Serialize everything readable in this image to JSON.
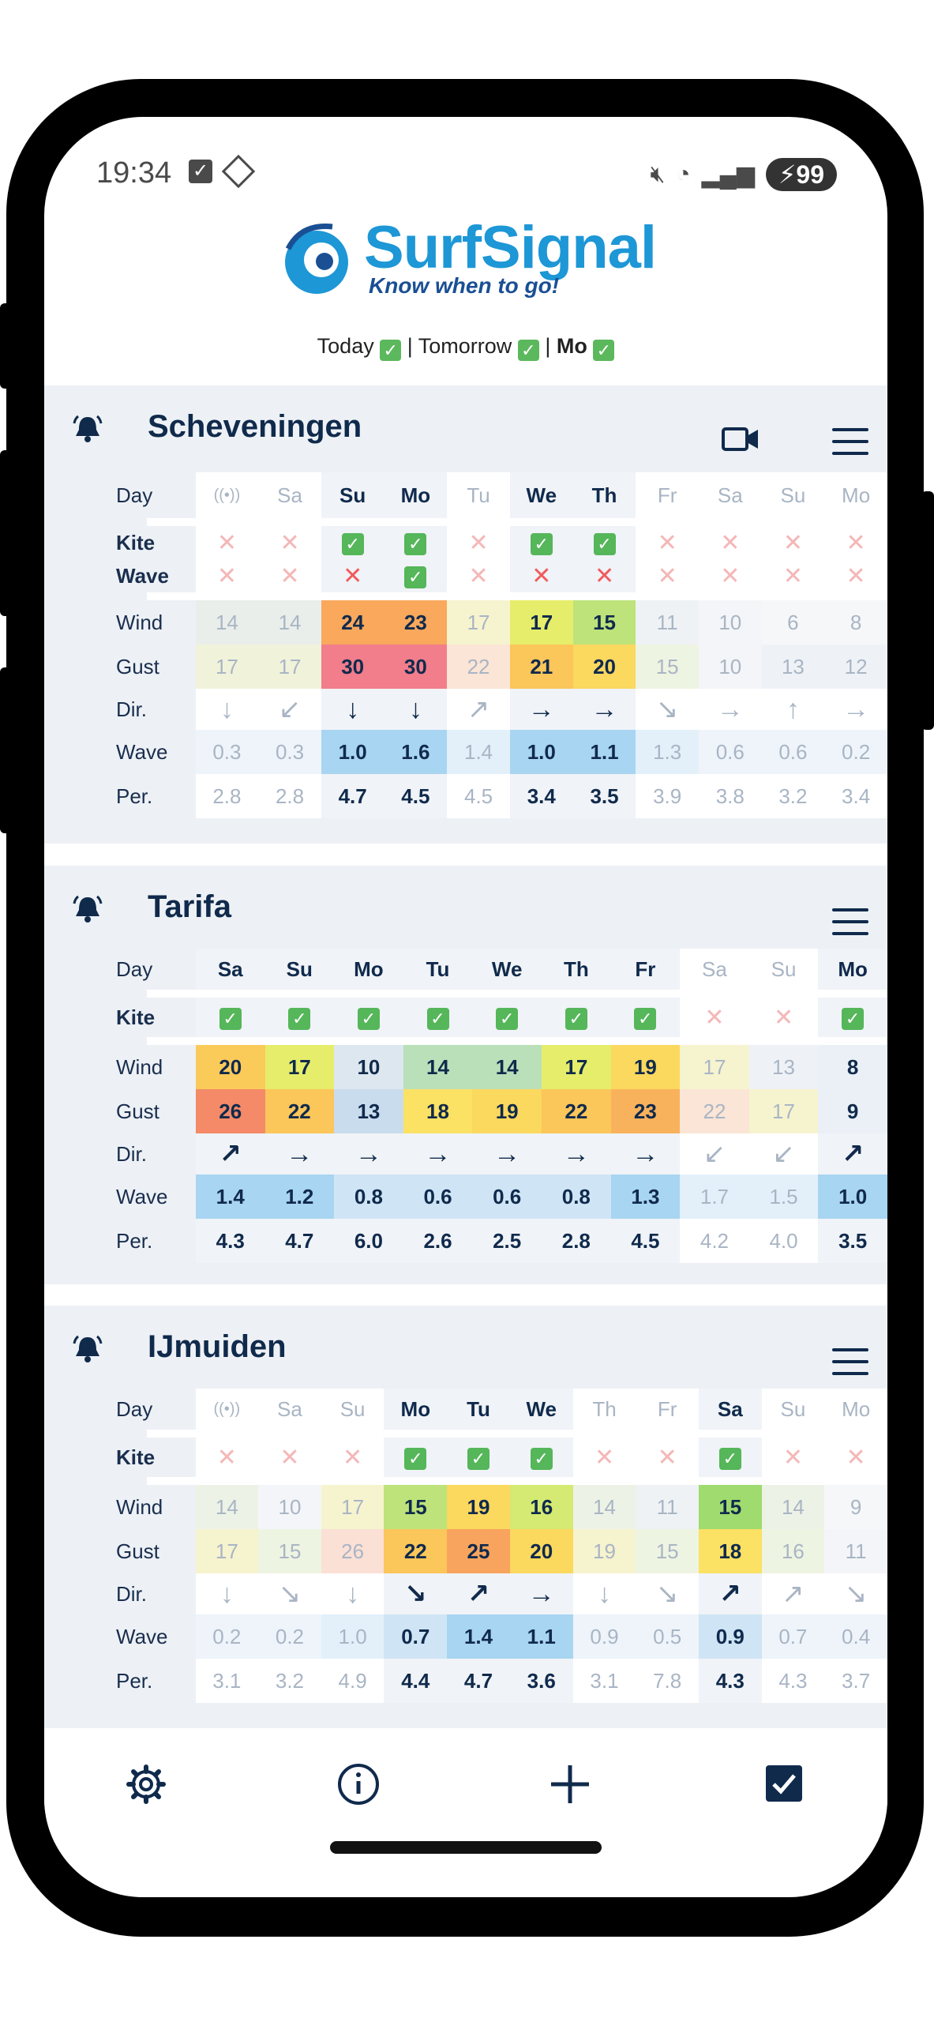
{
  "status_bar": {
    "time": "19:34",
    "battery": "99"
  },
  "app": {
    "name": "SurfSignal",
    "tagline": "Know when to go!"
  },
  "summary": {
    "today": "Today",
    "tomorrow": "Tomorrow",
    "day": "Mo"
  },
  "row_labels": {
    "day": "Day",
    "kite": "Kite",
    "wave_ok": "Wave",
    "wind": "Wind",
    "gust": "Gust",
    "dir": "Dir.",
    "wave": "Wave",
    "per": "Per."
  },
  "spots": [
    {
      "name": "Scheveningen",
      "has_video": true,
      "has_wave_row": true,
      "days": [
        {
          "d": "((•))",
          "hl": false,
          "kite": "x",
          "wave_ok": "x",
          "wind": "14",
          "gust": "17",
          "dir": "↓",
          "wave": "0.3",
          "per": "2.8",
          "wc": "#e9eeea",
          "gc": "#f0f3da",
          "wvc": "#eef4fa"
        },
        {
          "d": "Sa",
          "hl": false,
          "kite": "x",
          "wave_ok": "x",
          "wind": "14",
          "gust": "17",
          "dir": "↙",
          "wave": "0.3",
          "per": "2.8",
          "wc": "#e9eeea",
          "gc": "#f0f3da",
          "wvc": "#eef4fa"
        },
        {
          "d": "Su",
          "hl": true,
          "kite": "v",
          "wave_ok": "x",
          "wind": "24",
          "gust": "30",
          "dir": "↓",
          "wave": "1.0",
          "per": "4.7",
          "wc": "#f9a85c",
          "gc": "#f27d8b",
          "wvc": "#a8d5f1"
        },
        {
          "d": "Mo",
          "hl": true,
          "kite": "v",
          "wave_ok": "v",
          "wind": "23",
          "gust": "30",
          "dir": "↓",
          "wave": "1.6",
          "per": "4.5",
          "wc": "#f9a85c",
          "gc": "#f27d8b",
          "wvc": "#a8d5f1"
        },
        {
          "d": "Tu",
          "hl": false,
          "kite": "x",
          "wave_ok": "x",
          "wind": "17",
          "gust": "22",
          "dir": "↗",
          "wave": "1.4",
          "per": "4.5",
          "wc": "#f6f3cf",
          "gc": "#fbe5d6",
          "wvc": "#e3f0fa"
        },
        {
          "d": "We",
          "hl": true,
          "kite": "v",
          "wave_ok": "x",
          "wind": "17",
          "gust": "21",
          "dir": "→",
          "wave": "1.0",
          "per": "3.4",
          "wc": "#e6ed6a",
          "gc": "#fbc65a",
          "wvc": "#a8d5f1"
        },
        {
          "d": "Th",
          "hl": true,
          "kite": "v",
          "wave_ok": "x",
          "wind": "15",
          "gust": "20",
          "dir": "→",
          "wave": "1.1",
          "per": "3.5",
          "wc": "#bde37a",
          "gc": "#fbd85e",
          "wvc": "#a8d5f1"
        },
        {
          "d": "Fr",
          "hl": false,
          "kite": "x",
          "wave_ok": "x",
          "wind": "11",
          "gust": "15",
          "dir": "↘",
          "wave": "1.3",
          "per": "3.9",
          "wc": "#eef2f5",
          "gc": "#eef4e2",
          "wvc": "#e3f0fa"
        },
        {
          "d": "Sa",
          "hl": false,
          "kite": "x",
          "wave_ok": "x",
          "wind": "10",
          "gust": "10",
          "dir": "→",
          "wave": "0.6",
          "per": "3.8",
          "wc": "#f3f5f8",
          "gc": "#f3f5f8",
          "wvc": "#eef4fa"
        },
        {
          "d": "Su",
          "hl": false,
          "kite": "x",
          "wave_ok": "x",
          "wind": "6",
          "gust": "13",
          "dir": "↑",
          "wave": "0.6",
          "per": "3.2",
          "wc": "#f6f7f9",
          "gc": "#eef2f7",
          "wvc": "#eef4fa"
        },
        {
          "d": "Mo",
          "hl": false,
          "kite": "x",
          "wave_ok": "x",
          "wind": "8",
          "gust": "12",
          "dir": "→",
          "wave": "0.2",
          "per": "3.4",
          "wc": "#f6f7f9",
          "gc": "#eef2f7",
          "wvc": "#eef4fa"
        }
      ]
    },
    {
      "name": "Tarifa",
      "has_video": false,
      "has_wave_row": false,
      "days": [
        {
          "d": "Sa",
          "hl": true,
          "kite": "v",
          "wind": "20",
          "gust": "26",
          "dir": "↗",
          "wave": "1.4",
          "per": "4.3",
          "wc": "#fbcb5a",
          "gc": "#f48a68",
          "wvc": "#a8d5f1"
        },
        {
          "d": "Su",
          "hl": true,
          "kite": "v",
          "wind": "17",
          "gust": "22",
          "dir": "→",
          "wave": "1.2",
          "per": "4.7",
          "wc": "#e6ed6a",
          "gc": "#fbc65a",
          "wvc": "#a8d5f1"
        },
        {
          "d": "Mo",
          "hl": true,
          "kite": "v",
          "wind": "10",
          "gust": "13",
          "dir": "→",
          "wave": "0.8",
          "per": "6.0",
          "wc": "#dde7f0",
          "gc": "#c9dcee",
          "wvc": "#cfe5f5"
        },
        {
          "d": "Tu",
          "hl": true,
          "kite": "v",
          "wind": "14",
          "gust": "18",
          "dir": "→",
          "wave": "0.6",
          "per": "2.6",
          "wc": "#b9e0b8",
          "gc": "#fbe164",
          "wvc": "#cfe5f5"
        },
        {
          "d": "We",
          "hl": true,
          "kite": "v",
          "wind": "14",
          "gust": "19",
          "dir": "→",
          "wave": "0.6",
          "per": "2.5",
          "wc": "#b9e0b8",
          "gc": "#fbd85e",
          "wvc": "#cfe5f5"
        },
        {
          "d": "Th",
          "hl": true,
          "kite": "v",
          "wind": "17",
          "gust": "22",
          "dir": "→",
          "wave": "0.8",
          "per": "2.8",
          "wc": "#e6ed6a",
          "gc": "#fbc65a",
          "wvc": "#cfe5f5"
        },
        {
          "d": "Fr",
          "hl": true,
          "kite": "v",
          "wind": "19",
          "gust": "23",
          "dir": "→",
          "wave": "1.3",
          "per": "4.5",
          "wc": "#fbd85e",
          "gc": "#f9b25c",
          "wvc": "#a8d5f1"
        },
        {
          "d": "Sa",
          "hl": false,
          "kite": "x",
          "wind": "17",
          "gust": "22",
          "dir": "↙",
          "wave": "1.7",
          "per": "4.2",
          "wc": "#f6f3cf",
          "gc": "#fbe5d6",
          "wvc": "#e3f0fa"
        },
        {
          "d": "Su",
          "hl": false,
          "kite": "x",
          "wind": "13",
          "gust": "17",
          "dir": "↙",
          "wave": "1.5",
          "per": "4.0",
          "wc": "#eef2f7",
          "gc": "#f6f3cf",
          "wvc": "#e3f0fa"
        },
        {
          "d": "Mo",
          "hl": true,
          "kite": "v",
          "wind": "8",
          "gust": "9",
          "dir": "↗",
          "wave": "1.0",
          "per": "3.5",
          "wc": "#eaf0f6",
          "gc": "#eaf0f6",
          "wvc": "#a8d5f1"
        }
      ]
    },
    {
      "name": "IJmuiden",
      "has_video": false,
      "has_wave_row": false,
      "days": [
        {
          "d": "((•))",
          "hl": false,
          "kite": "x",
          "wind": "14",
          "gust": "17",
          "dir": "↓",
          "wave": "0.2",
          "per": "3.1",
          "wc": "#ecf2e6",
          "gc": "#f6f3cf",
          "wvc": "#eef4fa"
        },
        {
          "d": "Sa",
          "hl": false,
          "kite": "x",
          "wind": "10",
          "gust": "15",
          "dir": "↘",
          "wave": "0.2",
          "per": "3.2",
          "wc": "#f3f5f8",
          "gc": "#eef4e2",
          "wvc": "#eef4fa"
        },
        {
          "d": "Su",
          "hl": false,
          "kite": "x",
          "wind": "17",
          "gust": "26",
          "dir": "↓",
          "wave": "1.0",
          "per": "4.9",
          "wc": "#f6f3cf",
          "gc": "#fbe0d6",
          "wvc": "#e3f0fa"
        },
        {
          "d": "Mo",
          "hl": true,
          "kite": "v",
          "wind": "15",
          "gust": "22",
          "dir": "↘",
          "wave": "0.7",
          "per": "4.4",
          "wc": "#bde37a",
          "gc": "#fbc65a",
          "wvc": "#cfe5f5"
        },
        {
          "d": "Tu",
          "hl": true,
          "kite": "v",
          "wind": "19",
          "gust": "25",
          "dir": "↗",
          "wave": "1.4",
          "per": "4.7",
          "wc": "#fbd85e",
          "gc": "#f8a45e",
          "wvc": "#a8d5f1"
        },
        {
          "d": "We",
          "hl": true,
          "kite": "v",
          "wind": "16",
          "gust": "20",
          "dir": "→",
          "wave": "1.1",
          "per": "3.6",
          "wc": "#d4ea72",
          "gc": "#fbd85e",
          "wvc": "#a8d5f1"
        },
        {
          "d": "Th",
          "hl": false,
          "kite": "x",
          "wind": "14",
          "gust": "19",
          "dir": "↓",
          "wave": "0.9",
          "per": "3.1",
          "wc": "#ecf2e6",
          "gc": "#f6f3cf",
          "wvc": "#eef4fa"
        },
        {
          "d": "Fr",
          "hl": false,
          "kite": "x",
          "wind": "11",
          "gust": "15",
          "dir": "↘",
          "wave": "0.5",
          "per": "7.8",
          "wc": "#eef2f5",
          "gc": "#eef4e2",
          "wvc": "#eef4fa"
        },
        {
          "d": "Sa",
          "hl": true,
          "kite": "v",
          "wind": "15",
          "gust": "18",
          "dir": "↗",
          "wave": "0.9",
          "per": "4.3",
          "wc": "#9fdb6e",
          "gc": "#fbe164",
          "wvc": "#cfe5f5"
        },
        {
          "d": "Su",
          "hl": false,
          "kite": "x",
          "wind": "14",
          "gust": "16",
          "dir": "↗",
          "wave": "0.7",
          "per": "4.3",
          "wc": "#ecf2e6",
          "gc": "#eef4e2",
          "wvc": "#eef4fa"
        },
        {
          "d": "Mo",
          "hl": false,
          "kite": "x",
          "wind": "9",
          "gust": "11",
          "dir": "↘",
          "wave": "0.4",
          "per": "3.7",
          "wc": "#f6f7f9",
          "gc": "#f3f5f8",
          "wvc": "#eef4fa"
        }
      ]
    }
  ],
  "bottom_nav": [
    {
      "id": "settings",
      "icon": "gear-icon"
    },
    {
      "id": "info",
      "icon": "info-icon"
    },
    {
      "id": "add",
      "icon": "plus-icon"
    },
    {
      "id": "select",
      "icon": "checkbox-icon"
    }
  ]
}
